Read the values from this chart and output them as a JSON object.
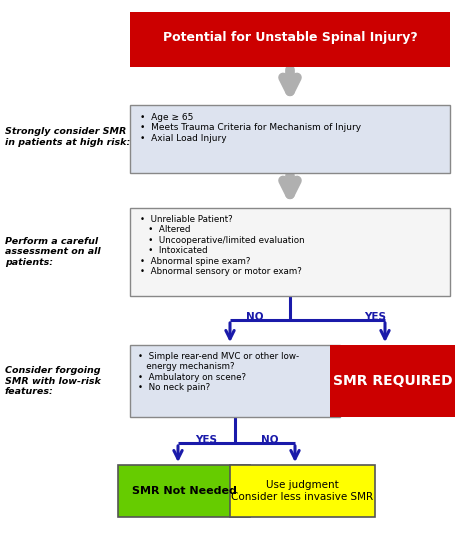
{
  "title": "Potential for Unstable Spinal Injury?",
  "box1_text": "•  Age ≥ 65\n•  Meets Trauma Criteria for Mechanism of Injury\n•  Axial Load Injury",
  "box1_label": "Strongly consider SMR\nin patients at high risk:",
  "box2_text": "•  Unreliable Patient?\n   •  Altered\n   •  Uncooperative/limited evaluation\n   •  Intoxicated\n•  Abnormal spine exam?\n•  Abnormal sensory or motor exam?",
  "box2_label": "Perform a careful\nassessment on all\npatients:",
  "box3_text": "•  Simple rear-end MVC or other low-\n   energy mechanism?\n•  Ambulatory on scene?\n•  No neck pain?",
  "box3_label": "Consider forgoing\nSMR with low-risk\nfeatures:",
  "smr_required_text": "SMR REQUIRED",
  "smr_not_needed_text": "SMR Not Needed",
  "use_judgment_text": "Use judgment\nConsider less invasive SMR",
  "color_red": "#cc0000",
  "color_green": "#66cc00",
  "color_yellow": "#ffff00",
  "color_blue": "#1a1aaa",
  "color_gray_arrow": "#b0b0b0",
  "color_light_gray": "#dde3ef",
  "color_box2_bg": "#f5f5f5",
  "color_white": "#ffffff",
  "color_black": "#000000",
  "no_label": "NO",
  "yes_label": "YES",
  "yes_label2": "YES",
  "no_label2": "NO",
  "bg_color": "#ffffff",
  "figsize": [
    4.74,
    5.48
  ],
  "dpi": 100
}
